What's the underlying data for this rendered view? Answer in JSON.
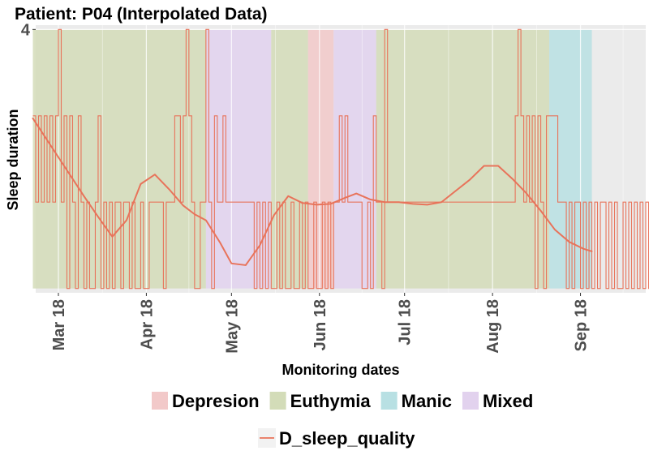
{
  "chart_data": {
    "type": "line",
    "title": "Patient: P04 (Interpolated Data)",
    "xlabel": "Monitoring dates",
    "ylabel": "Sleep duration",
    "x_range": [
      "2018-02-21",
      "2018-09-24"
    ],
    "ylim": [
      0.95,
      4.05
    ],
    "y_ticks": [
      {
        "value": 4,
        "label": "4"
      }
    ],
    "x_ticks": [
      {
        "date": "2018-03-01",
        "label": "Mar 18"
      },
      {
        "date": "2018-04-01",
        "label": "Apr 18"
      },
      {
        "date": "2018-05-01",
        "label": "May 18"
      },
      {
        "date": "2018-06-01",
        "label": "Jun 18"
      },
      {
        "date": "2018-07-01",
        "label": "Jul 18"
      },
      {
        "date": "2018-08-01",
        "label": "Aug 18"
      },
      {
        "date": "2018-09-01",
        "label": "Sep 18"
      }
    ],
    "grid": true,
    "legend_position": "bottom",
    "state_legend": [
      {
        "label": "Depresion",
        "color": "#f2c9c9"
      },
      {
        "label": "Euthymia",
        "color": "#d3dcb8"
      },
      {
        "label": "Manic",
        "color": "#b8e0e3"
      },
      {
        "label": "Mixed",
        "color": "#e2d2ee"
      }
    ],
    "series_legend": [
      {
        "label": "D_sleep_quality",
        "color": "#e8735a"
      }
    ],
    "state_bands": [
      {
        "state": "Euthymia",
        "start": "2018-02-20",
        "end": "2018-04-22"
      },
      {
        "state": "Mixed",
        "start": "2018-04-22",
        "end": "2018-05-15"
      },
      {
        "state": "Euthymia",
        "start": "2018-05-15",
        "end": "2018-05-28"
      },
      {
        "state": "Depresion",
        "start": "2018-05-28",
        "end": "2018-06-06"
      },
      {
        "state": "Mixed",
        "start": "2018-06-06",
        "end": "2018-06-21"
      },
      {
        "state": "Euthymia",
        "start": "2018-06-21",
        "end": "2018-08-21"
      },
      {
        "state": "Manic",
        "start": "2018-08-21",
        "end": "2018-09-05"
      }
    ],
    "series": [
      {
        "name": "D_sleep_quality",
        "color": "#e8735a",
        "kind": "daily-step",
        "start": "2018-02-20",
        "values": [
          3,
          2,
          3,
          2,
          3,
          2,
          3,
          2,
          3,
          4,
          2,
          3,
          1,
          3,
          2,
          1,
          3,
          2,
          1,
          2,
          1,
          1,
          2,
          3,
          1,
          2,
          1,
          2,
          1,
          2,
          2,
          1,
          2,
          2,
          1,
          2,
          1,
          1,
          2,
          1,
          1,
          2,
          2,
          2,
          2,
          2,
          1,
          2,
          2,
          2,
          3,
          3,
          2,
          3,
          4,
          3,
          2,
          1,
          1,
          2,
          2,
          4,
          2,
          1,
          3,
          2,
          2,
          3,
          2,
          2,
          2,
          2,
          2,
          2,
          2,
          2,
          2,
          2,
          1,
          2,
          1,
          2,
          1,
          2,
          1,
          1,
          2,
          1,
          2,
          1,
          1,
          2,
          1,
          1,
          2,
          1,
          2,
          1,
          1,
          2,
          1,
          1,
          2,
          1,
          2,
          1,
          2,
          2,
          3,
          2,
          3,
          2,
          2,
          2,
          2,
          2,
          1,
          1,
          2,
          1,
          3,
          2,
          2,
          1,
          4,
          2,
          2,
          2,
          2,
          2,
          2,
          2,
          2,
          2,
          2,
          2,
          2,
          2,
          2,
          2,
          2,
          2,
          2,
          2,
          2,
          2,
          2,
          2,
          2,
          2,
          2,
          2,
          2,
          2,
          2,
          2,
          2,
          2,
          2,
          2,
          2,
          2,
          2,
          2,
          2,
          2,
          2,
          2,
          2,
          2,
          3,
          4,
          3,
          2,
          3,
          2,
          3,
          1,
          3,
          2,
          1,
          3,
          3,
          3,
          3,
          2,
          2,
          2,
          1,
          2,
          1,
          2,
          2,
          1,
          2,
          1,
          2,
          1,
          2,
          1,
          2,
          2,
          1,
          2,
          1,
          2,
          1,
          1,
          2,
          1,
          2,
          1,
          2,
          1,
          2,
          1,
          2,
          1,
          1,
          2,
          2
        ]
      },
      {
        "name": "D_sleep_quality (smoothed)",
        "color": "#e8735a",
        "kind": "smooth",
        "points": [
          [
            "2018-02-20",
            2.97
          ],
          [
            "2018-02-25",
            2.72
          ],
          [
            "2018-03-01",
            2.52
          ],
          [
            "2018-03-06",
            2.27
          ],
          [
            "2018-03-10",
            2.07
          ],
          [
            "2018-03-15",
            1.83
          ],
          [
            "2018-03-20",
            1.6
          ],
          [
            "2018-03-25",
            1.79
          ],
          [
            "2018-03-30",
            2.21
          ],
          [
            "2018-04-04",
            2.32
          ],
          [
            "2018-04-09",
            2.15
          ],
          [
            "2018-04-14",
            1.96
          ],
          [
            "2018-04-18",
            1.86
          ],
          [
            "2018-04-22",
            1.79
          ],
          [
            "2018-04-27",
            1.53
          ],
          [
            "2018-05-01",
            1.29
          ],
          [
            "2018-05-06",
            1.27
          ],
          [
            "2018-05-11",
            1.5
          ],
          [
            "2018-05-16",
            1.85
          ],
          [
            "2018-05-21",
            2.07
          ],
          [
            "2018-05-26",
            1.99
          ],
          [
            "2018-05-31",
            1.97
          ],
          [
            "2018-06-05",
            1.98
          ],
          [
            "2018-06-10",
            2.05
          ],
          [
            "2018-06-14",
            2.1
          ],
          [
            "2018-06-19",
            2.03
          ],
          [
            "2018-06-24",
            2.0
          ],
          [
            "2018-06-29",
            2.0
          ],
          [
            "2018-07-04",
            1.98
          ],
          [
            "2018-07-09",
            1.97
          ],
          [
            "2018-07-14",
            2.0
          ],
          [
            "2018-07-19",
            2.13
          ],
          [
            "2018-07-24",
            2.26
          ],
          [
            "2018-07-29",
            2.42
          ],
          [
            "2018-08-03",
            2.42
          ],
          [
            "2018-08-08",
            2.27
          ],
          [
            "2018-08-13",
            2.1
          ],
          [
            "2018-08-18",
            1.9
          ],
          [
            "2018-08-23",
            1.68
          ],
          [
            "2018-08-28",
            1.54
          ],
          [
            "2018-09-02",
            1.46
          ],
          [
            "2018-09-05",
            1.43
          ]
        ]
      }
    ]
  }
}
